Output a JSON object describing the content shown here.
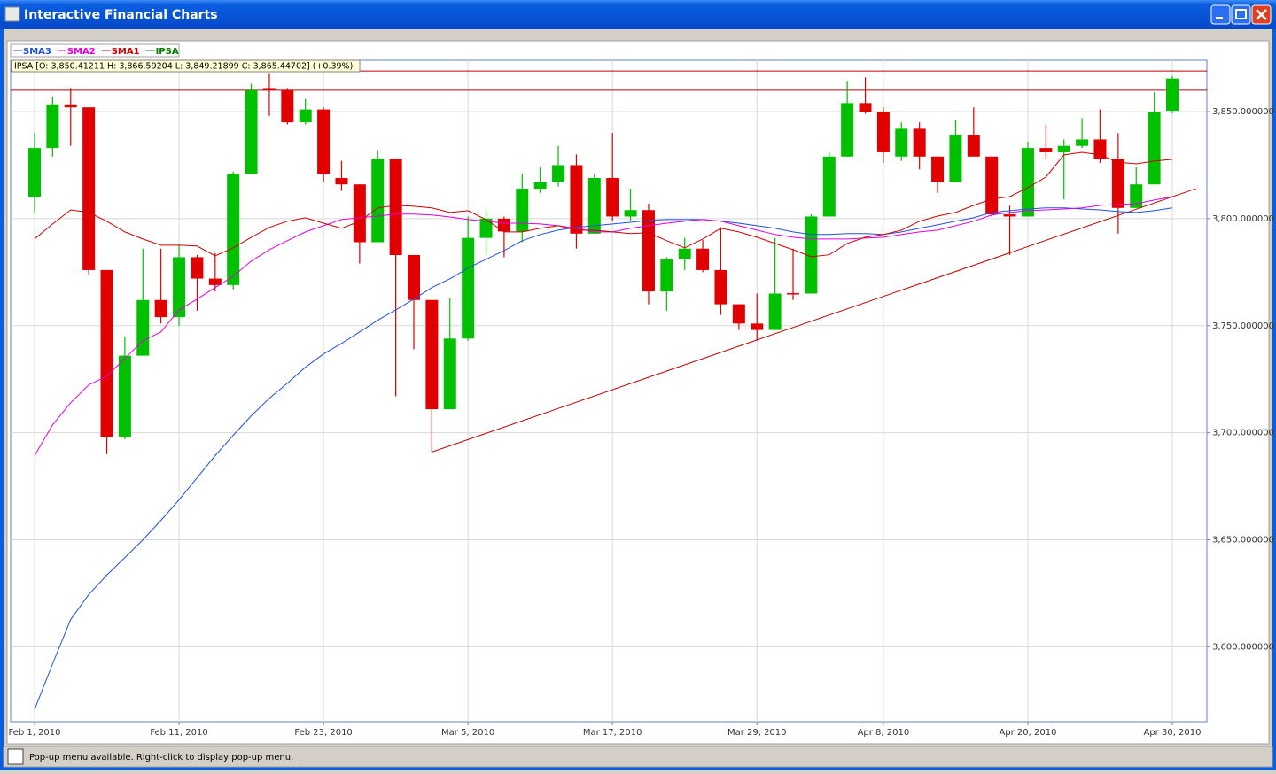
{
  "window": {
    "title": "Interactive Financial Charts"
  },
  "status_bar": "Pop-up menu available. Right-click to display pop-up menu.",
  "chart_data": {
    "type": "candlestick",
    "name": "IPSA",
    "name_color": "#008000",
    "info_label": "IPSA [O: 3,850.41211  H: 3,866.59204  L: 3,849.21899  C: 3,865.44702] (+0.39%)",
    "up_color": "#00c000",
    "down_color": "#e00000",
    "categories": [
      "Feb 1, 2010",
      null,
      null,
      null,
      null,
      null,
      null,
      null,
      "Feb 11, 2010",
      null,
      null,
      null,
      null,
      null,
      null,
      null,
      "Feb 23, 2010",
      null,
      null,
      null,
      null,
      null,
      null,
      null,
      "Mar 5, 2010",
      null,
      null,
      null,
      null,
      null,
      null,
      null,
      "Mar 17, 2010",
      null,
      null,
      null,
      null,
      null,
      null,
      null,
      "Mar 29, 2010",
      null,
      null,
      null,
      null,
      null,
      null,
      "Apr 8, 2010",
      null,
      null,
      null,
      null,
      null,
      null,
      null,
      "Apr 20, 2010",
      null,
      null,
      null,
      null,
      null,
      null,
      null,
      "Apr 30, 2010"
    ],
    "open": [
      3810.3,
      3833,
      3853,
      3852,
      3776,
      3698,
      3736,
      3762,
      3754,
      3782,
      3772,
      3769,
      3821,
      3861,
      3860,
      3845,
      3851,
      3819,
      3816,
      3789,
      3828,
      3783,
      3762,
      3711,
      3744,
      3791,
      3800,
      3794,
      3814,
      3817,
      3825,
      3793,
      3819,
      3801,
      3804,
      3766,
      3781,
      3786,
      3776,
      3760,
      3751,
      3748,
      3765.2,
      3765,
      3801,
      3829,
      3854,
      3850,
      3829,
      3842,
      3829,
      3817,
      3839,
      3829,
      3802,
      3801,
      3833,
      3831,
      3834,
      3837,
      3828,
      3805,
      3816,
      3850.41211
    ],
    "high": [
      3840,
      3857,
      3861,
      3852,
      3776,
      3745,
      3786,
      3786,
      3788,
      3783,
      3784,
      3822,
      3863,
      3868,
      3861,
      3856,
      3852,
      3827,
      3816,
      3832,
      3828,
      3783,
      3762,
      3763,
      3801,
      3804,
      3801,
      3821,
      3824,
      3834,
      3830,
      3821,
      3840,
      3814,
      3807,
      3782,
      3791,
      3790,
      3796,
      3760,
      3765,
      3791,
      3786,
      3802,
      3831,
      3864,
      3866,
      3852,
      3845,
      3845,
      3829,
      3846,
      3852,
      3829,
      3806,
      3836,
      3844,
      3837,
      3847,
      3851,
      3840,
      3824,
      3859,
      3866.59204
    ],
    "low": [
      3803,
      3829,
      3834,
      3774,
      3690,
      3697,
      3736,
      3751,
      3750,
      3757,
      3766,
      3767,
      3821,
      3848,
      3844,
      3844,
      3817,
      3813,
      3779,
      3789,
      3717,
      3739,
      3691,
      3711,
      3743,
      3783,
      3782,
      3789,
      3812,
      3815,
      3786,
      3793,
      3799,
      3799,
      3760,
      3757,
      3776,
      3775,
      3755,
      3748,
      3743,
      3748,
      3762,
      3765,
      3801,
      3829,
      3849,
      3826,
      3827,
      3823,
      3812,
      3817,
      3829,
      3801,
      3783,
      3801,
      3828,
      3809,
      3833,
      3826,
      3793,
      3805,
      3816,
      3849.21899
    ],
    "close": [
      3833,
      3853,
      3852,
      3776,
      3698,
      3736,
      3762,
      3754,
      3782,
      3772,
      3769,
      3821,
      3860,
      3860,
      3845,
      3851,
      3821,
      3816,
      3789,
      3828,
      3783,
      3762,
      3711,
      3744,
      3791,
      3800,
      3794,
      3814,
      3817,
      3825,
      3793,
      3819,
      3801,
      3804,
      3766,
      3781,
      3786,
      3776,
      3760,
      3751,
      3748,
      3765,
      3764.8,
      3801,
      3829,
      3854,
      3850,
      3831,
      3842,
      3829,
      3817,
      3839,
      3829,
      3802,
      3801,
      3833,
      3831,
      3834,
      3837,
      3828,
      3805,
      3816,
      3850,
      3865.44702
    ],
    "series": [
      {
        "name": "SMA3",
        "color": "#2050e0",
        "values": [
          3570.7,
          3592.1,
          3612.8,
          3624.4,
          3633.5,
          3641.7,
          3650,
          3659.1,
          3668.6,
          3678.9,
          3689.3,
          3698.8,
          3707.9,
          3716.1,
          3723.1,
          3730.6,
          3736.8,
          3741.7,
          3747.1,
          3752.5,
          3757.4,
          3762.4,
          3767.8,
          3771.9,
          3776.9,
          3781,
          3785.1,
          3789.7,
          3792.6,
          3794.6,
          3795.9,
          3796.7,
          3797.5,
          3798.3,
          3799.2,
          3799.6,
          3799.6,
          3799.6,
          3798.8,
          3797.9,
          3796.7,
          3795.5,
          3793.8,
          3792.6,
          3792.6,
          3793,
          3793,
          3792.6,
          3793.8,
          3795.5,
          3797.1,
          3798.8,
          3800.4,
          3802.9,
          3803.7,
          3804.5,
          3805,
          3805,
          3804.5,
          3804.1,
          3803.3,
          3802.9,
          3803.7,
          3805
        ]
      },
      {
        "name": "SMA2",
        "color": "#e000e0",
        "values": [
          3689.3,
          3703.7,
          3714,
          3722.3,
          3726.4,
          3734.7,
          3743,
          3747.1,
          3757.4,
          3762.4,
          3767.8,
          3773.1,
          3780.2,
          3785.5,
          3789.7,
          3793.8,
          3796.7,
          3799.6,
          3800.4,
          3801.2,
          3802.1,
          3802.1,
          3801.7,
          3800.8,
          3799.6,
          3798.8,
          3797.9,
          3797.9,
          3797.5,
          3796.7,
          3795.5,
          3793.8,
          3793.8,
          3795.5,
          3796.7,
          3797.9,
          3798.8,
          3799.6,
          3798.8,
          3796.7,
          3794.6,
          3792.6,
          3791.3,
          3790.5,
          3790.5,
          3790.5,
          3790.9,
          3791.3,
          3792.6,
          3793.8,
          3794.6,
          3796.7,
          3798.8,
          3801.7,
          3802.9,
          3803.7,
          3804.1,
          3804.5,
          3805,
          3806.2,
          3806.6,
          3807,
          3808.7,
          3810.3
        ]
      },
      {
        "name": "SMA1",
        "color": "#d00000",
        "values": [
          3790.5,
          3797.5,
          3804.1,
          3802.9,
          3798.8,
          3793.8,
          3790.5,
          3787.6,
          3787.6,
          3787.2,
          3782.6,
          3786.4,
          3791.3,
          3795.9,
          3798.8,
          3800.4,
          3797.9,
          3795.5,
          3798.8,
          3805,
          3806.2,
          3805.8,
          3805,
          3802.9,
          3803.7,
          3799.6,
          3793.8,
          3793.8,
          3795.5,
          3796.7,
          3794.6,
          3794.6,
          3793.8,
          3793,
          3793.4,
          3789.7,
          3786.4,
          3790.5,
          3795.5,
          3793.8,
          3791.3,
          3788.4,
          3785.5,
          3782.2,
          3783.1,
          3788.4,
          3791.3,
          3792.6,
          3794.6,
          3798.8,
          3801.2,
          3802.9,
          3806.2,
          3809.1,
          3810.3,
          3814.5,
          3819.4,
          3829.8,
          3831,
          3829.8,
          3826.4,
          3825.6,
          3826.9,
          3827.7
        ]
      }
    ],
    "trend_line": {
      "x": [
        22,
        64.3
      ],
      "values": [
        3691,
        3814
      ],
      "color": "#c00000"
    },
    "horizontal_lines": [
      3869,
      3860
    ],
    "horizontal_line_color": "#c00000",
    "ylim": [
      3565,
      3874
    ],
    "yticks": [
      {
        "value": 3600,
        "label": "3,600.000000"
      },
      {
        "value": 3650,
        "label": "3,650.000000"
      },
      {
        "value": 3700,
        "label": "3,700.000000"
      },
      {
        "value": 3750,
        "label": "3,750.000000"
      },
      {
        "value": 3800,
        "label": "3,800.000000"
      },
      {
        "value": 3850,
        "label": "3,850.000000"
      }
    ],
    "grid": true,
    "legend": "top-left"
  }
}
